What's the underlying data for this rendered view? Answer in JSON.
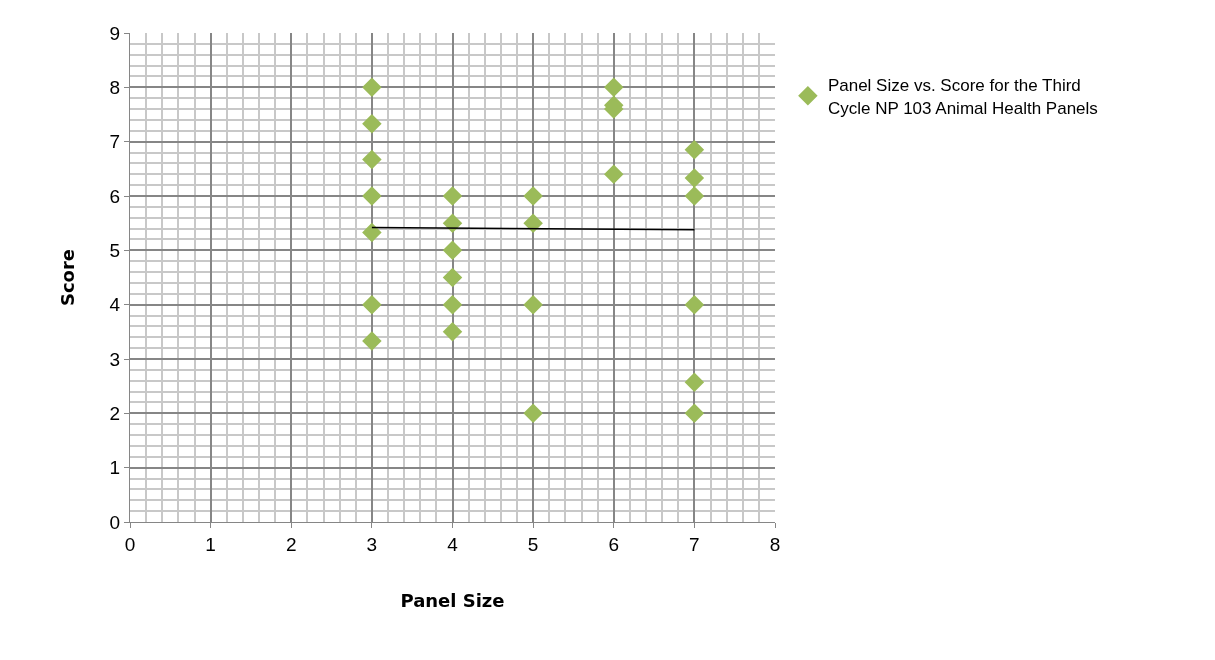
{
  "chart_data": {
    "type": "scatter",
    "xlabel": "Panel Size",
    "ylabel": "Score",
    "xlim": [
      0,
      8
    ],
    "ylim": [
      0,
      9
    ],
    "xticks": [
      0,
      1,
      2,
      3,
      4,
      5,
      6,
      7,
      8
    ],
    "yticks": [
      0,
      1,
      2,
      3,
      4,
      5,
      6,
      7,
      8,
      9
    ],
    "grid": true,
    "legend": "top right",
    "marker": "diamond",
    "series": [
      {
        "name": "Panel Size vs. Score for the Third Cycle NP 103 Animal Health Panels",
        "color": "#9bbb59",
        "x": [
          3,
          3,
          3,
          3,
          3,
          3,
          3,
          4,
          4,
          4,
          4,
          4,
          4,
          5,
          5,
          5,
          5,
          6,
          6,
          6,
          6,
          7,
          7,
          7,
          7,
          7,
          7
        ],
        "values": [
          8,
          7.33,
          6.67,
          6,
          5.33,
          4,
          3.33,
          6,
          5.5,
          5,
          4.5,
          4,
          3.5,
          6,
          5.5,
          4,
          2,
          8,
          7.67,
          7.6,
          6.4,
          6.85,
          6.33,
          6,
          4,
          2.57,
          2
        ]
      },
      {
        "type": "line",
        "color": "#000000",
        "x": [
          3,
          7
        ],
        "values": [
          5.42,
          5.38
        ],
        "line_style": "solid",
        "marker": "none"
      }
    ]
  }
}
